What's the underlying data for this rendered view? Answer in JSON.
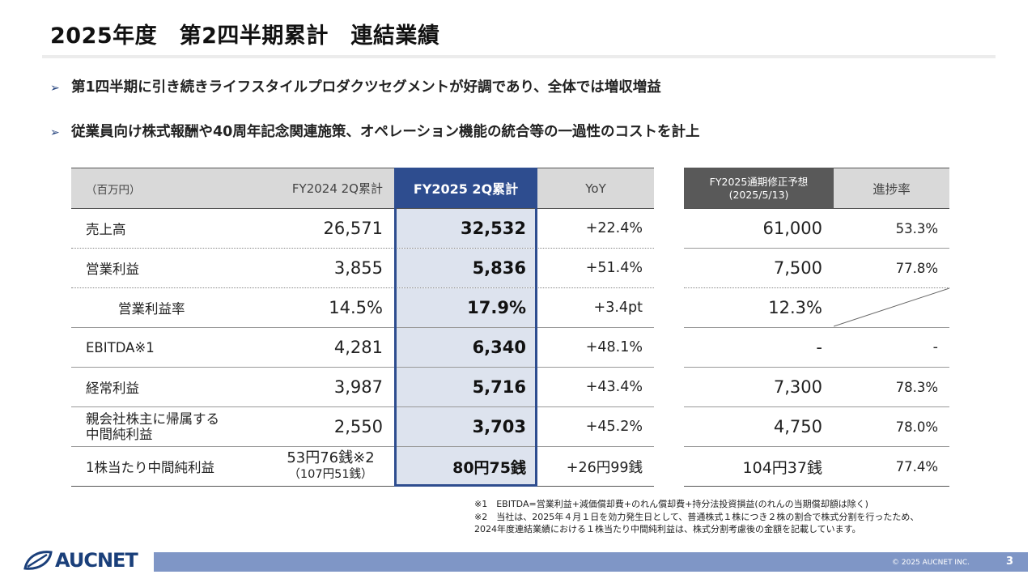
{
  "title": "2025年度　第2四半期累計　連結業績",
  "bullets": [
    "第1四半期に引き続きライフスタイルプロダクツセグメントが好調であり、全体では増収増益",
    "従業員向け株式報酬や40周年記念関連施策、オペレーション機能の統合等の一過性のコストを計上"
  ],
  "bullet_mark": "➢",
  "table": {
    "headers": [
      "（百万円）",
      "FY2024 2Q累計",
      "FY2025 2Q累計",
      "YoY"
    ],
    "rows": [
      {
        "label": "売上高",
        "fy24": "26,571",
        "fy25": "32,532",
        "yoy": "+22.4%"
      },
      {
        "label": "営業利益",
        "fy24": "3,855",
        "fy25": "5,836",
        "yoy": "+51.4%"
      },
      {
        "label": "営業利益率",
        "fy24": "14.5%",
        "fy25": "17.9%",
        "yoy": "+3.4pt"
      },
      {
        "label": "EBITDA※1",
        "fy24": "4,281",
        "fy25": "6,340",
        "yoy": "+48.1%"
      },
      {
        "label": "経常利益",
        "fy24": "3,987",
        "fy25": "5,716",
        "yoy": "+43.4%"
      },
      {
        "label": "親会社株主に帰属する",
        "label2": "中間純利益",
        "fy24": "2,550",
        "fy25": "3,703",
        "yoy": "+45.2%"
      },
      {
        "label": "1株当たり中間純利益",
        "fy24": "53円76銭※2",
        "fy24_sub": "（107円51銭）",
        "fy25": "80円75銭",
        "yoy": "+26円99銭"
      }
    ]
  },
  "forecast": {
    "headers": [
      "FY2025通期修正予想",
      "(2025/5/13)",
      "進捗率"
    ],
    "rows": [
      {
        "forecast": "61,000",
        "progress": "53.3%"
      },
      {
        "forecast": "7,500",
        "progress": "77.8%"
      },
      {
        "forecast": "12.3%",
        "progress": ""
      },
      {
        "forecast": "-",
        "progress": "-"
      },
      {
        "forecast": "7,300",
        "progress": "78.3%"
      },
      {
        "forecast": "4,750",
        "progress": "78.0%"
      },
      {
        "forecast": "104円37銭",
        "progress": "77.4%"
      }
    ]
  },
  "notes": [
    "※1　EBITDA=営業利益+減価償却費+のれん償却費+持分法投資損益(のれんの当期償却額は除く)",
    "※2　当社は、2025年４月１日を効力発生日として、普通株式１株につき２株の割合で株式分割を行ったため、",
    "2024年度連結業績における１株当たり中間純利益は、株式分割考慮後の金額を記載しています。"
  ],
  "footer": {
    "logo": "AUCNET",
    "copyright": "© 2025 AUCNET INC.",
    "page": "3"
  },
  "colors": {
    "accent": "#2e4d8f",
    "highlight_bg": "#dde3ee",
    "header_bg": "#d9d9d9",
    "footer_bar": "#7f96c6",
    "logo": "#1a3f7a"
  }
}
